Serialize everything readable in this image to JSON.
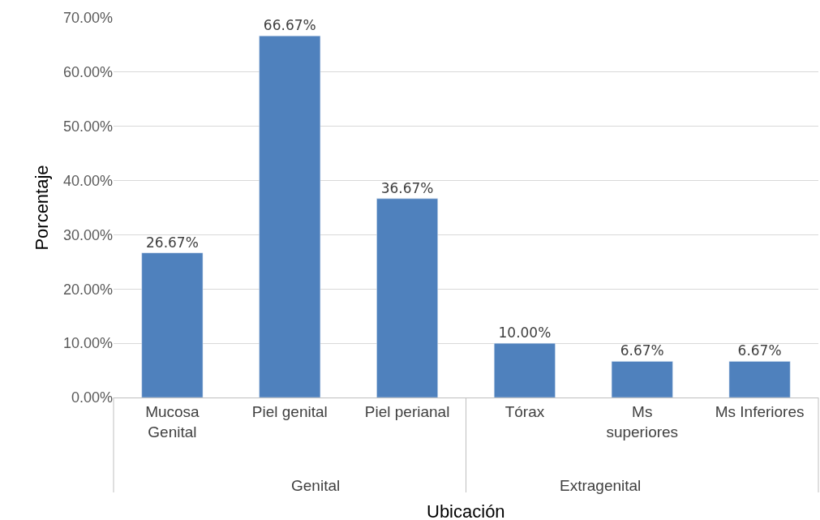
{
  "chart_data": {
    "type": "bar",
    "xlabel": "Ubicación",
    "ylabel": "Porcentaje",
    "categories": [
      "Mucosa\nGenital",
      "Piel genital",
      "Piel perianal",
      "Tórax",
      "Ms\nsuperiores",
      "Ms Inferiores"
    ],
    "values": [
      26.67,
      66.67,
      36.67,
      10.0,
      6.67,
      6.67
    ],
    "value_labels": [
      "26.67%",
      "66.67%",
      "36.67%",
      "10.00%",
      "6.67%",
      "6.67%"
    ],
    "color": "#4f81bd",
    "ylim": [
      0,
      70
    ],
    "yticks": [
      {
        "value": 0,
        "label": "0.00%"
      },
      {
        "value": 10,
        "label": "10.00%"
      },
      {
        "value": 20,
        "label": "20.00%"
      },
      {
        "value": 30,
        "label": "30.00%"
      },
      {
        "value": 40,
        "label": "40.00%"
      },
      {
        "value": 50,
        "label": "50.00%"
      },
      {
        "value": 60,
        "label": "60.00%"
      },
      {
        "value": 70,
        "label": "70.00%"
      }
    ],
    "grid": "y",
    "annotations": [
      "Genital",
      "Extragenital"
    ]
  }
}
